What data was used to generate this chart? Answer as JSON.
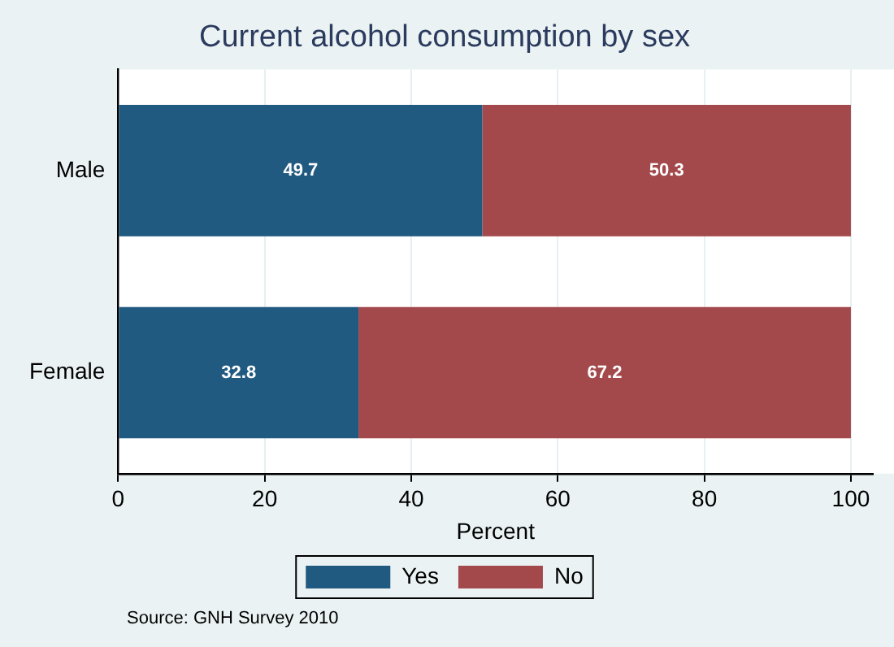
{
  "chart_data": {
    "type": "bar",
    "orientation": "horizontal",
    "stacked": true,
    "title": "Current alcohol consumption by sex",
    "xlabel": "Percent",
    "categories": [
      "Male",
      "Female"
    ],
    "series": [
      {
        "name": "Yes",
        "color": "#215a80",
        "values": [
          49.7,
          32.8
        ]
      },
      {
        "name": "No",
        "color": "#a3484b",
        "values": [
          50.3,
          67.2
        ]
      }
    ],
    "xlim": [
      0,
      103
    ],
    "xticks": [
      0,
      20,
      40,
      60,
      80,
      100
    ],
    "grid": "x",
    "legend": "bottom",
    "data_labels": true,
    "annotations": [
      "Source: GNH Survey 2010"
    ]
  }
}
